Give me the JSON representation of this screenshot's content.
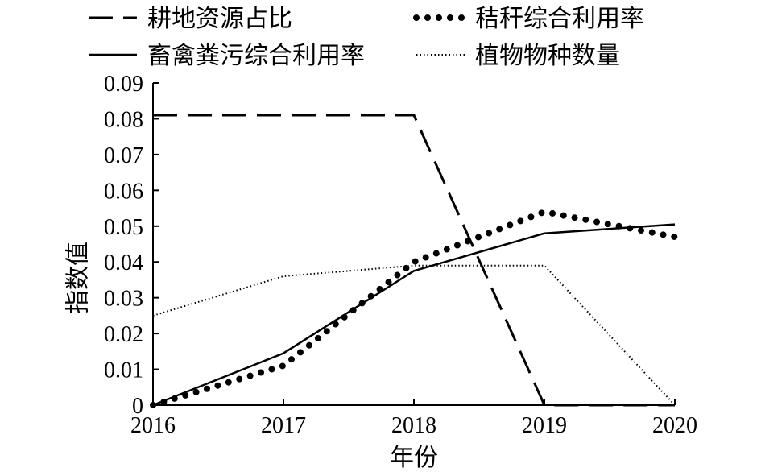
{
  "chart_data": {
    "type": "line",
    "x": [
      2016,
      2017,
      2018,
      2019,
      2020
    ],
    "x_tick_labels": [
      "2016",
      "2017",
      "2018",
      "2019",
      "2020"
    ],
    "xlim": [
      2016,
      2020
    ],
    "ylim": [
      0,
      0.09
    ],
    "y_tick_labels": [
      "0",
      "0.01",
      "0.02",
      "0.03",
      "0.04",
      "0.05",
      "0.06",
      "0.07",
      "0.08",
      "0.09"
    ],
    "xlabel": "年份",
    "ylabel": "指数值",
    "grid": false,
    "legend_placement": "top",
    "line_color": "#000000",
    "series": [
      {
        "name": "耕地资源占比",
        "style": "dashed",
        "values": [
          0.081,
          0.081,
          0.081,
          0.0,
          0.0
        ]
      },
      {
        "name": "秸秆综合利用率",
        "style": "dotted-large",
        "values": [
          0.0,
          0.011,
          0.04,
          0.054,
          0.047
        ]
      },
      {
        "name": "畜禽粪污综合利用率",
        "style": "solid",
        "values": [
          0.0,
          0.0145,
          0.0375,
          0.048,
          0.0505
        ]
      },
      {
        "name": "植物物种数量",
        "style": "dotted-fine",
        "values": [
          0.025,
          0.036,
          0.039,
          0.039,
          0.0
        ]
      }
    ]
  }
}
